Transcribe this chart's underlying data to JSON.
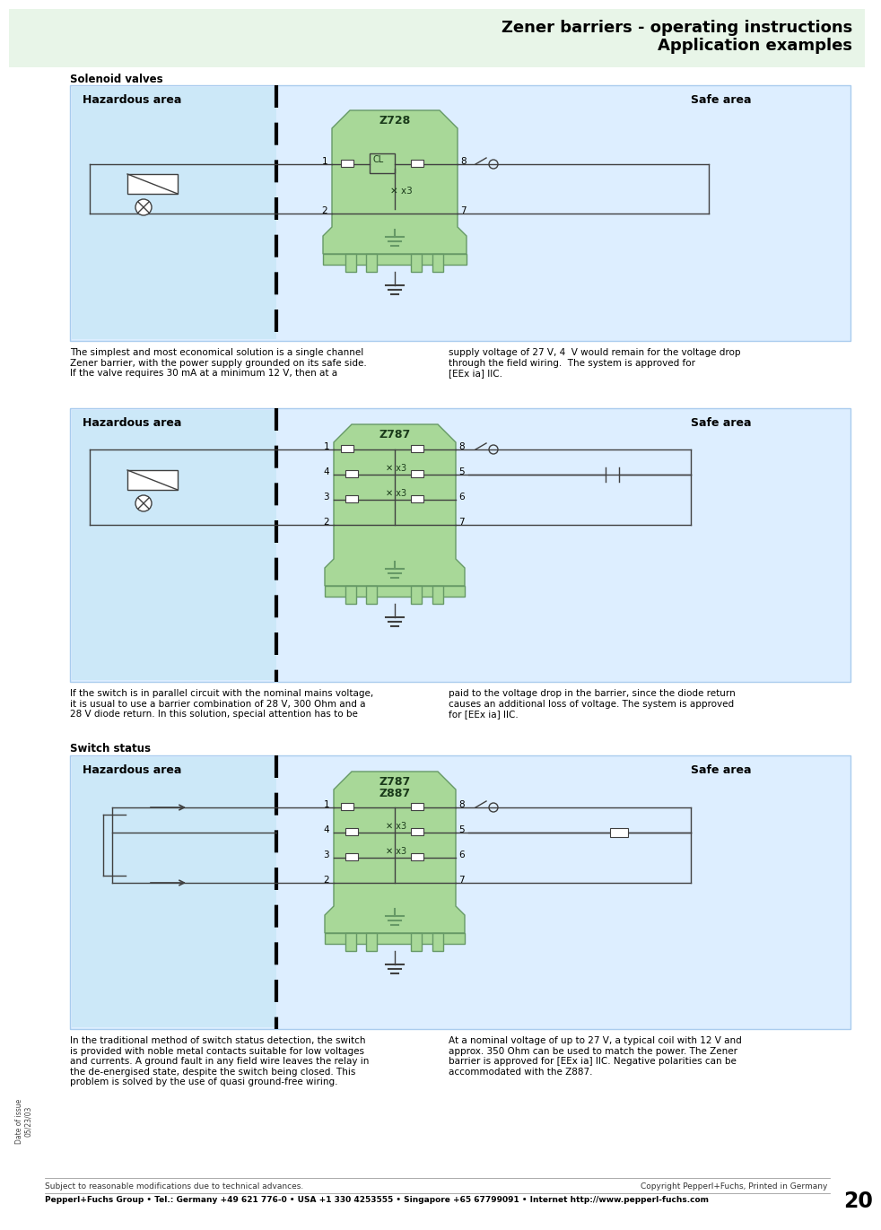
{
  "title_line1": "Zener barriers - operating instructions",
  "title_line2": "Application examples",
  "page_bg": "#ffffff",
  "header_bg": "#e8f5e8",
  "hazardous_bg": "#ddeeff",
  "hazardous_border": "#aaccee",
  "green_light": "#a8d898",
  "green_mid": "#88bb88",
  "border_color": "#669966",
  "line_color": "#404040",
  "section1_label": "Solenoid valves",
  "section3_label": "Switch status",
  "diag1_title": "Z728",
  "diag2_title": "Z787",
  "diag3_title_1": "Z787",
  "diag3_title_2": "Z887",
  "hazardous_label": "Hazardous area",
  "safe_label": "Safe area",
  "text1a": "The simplest and most economical solution is a single channel\nZener barrier, with the power supply grounded on its safe side.\nIf the valve requires 30 mA at a minimum 12 V, then at a",
  "text1b": "supply voltage of 27 V, 4  V would remain for the voltage drop\nthrough the field wiring.  The system is approved for\n[EEx ia] IIC.",
  "text2a": "If the switch is in parallel circuit with the nominal mains voltage,\nit is usual to use a barrier combination of 28 V, 300 Ohm and a\n28 V diode return. In this solution, special attention has to be",
  "text2b": "paid to the voltage drop in the barrier, since the diode return\ncauses an additional loss of voltage. The system is approved\nfor [EEx ia] IIC.",
  "text3a": "In the traditional method of switch status detection, the switch\nis provided with noble metal contacts suitable for low voltages\nand currents. A ground fault in any field wire leaves the relay in\nthe de-energised state, despite the switch being closed. This\nproblem is solved by the use of quasi ground-free wiring.",
  "text3b": "At a nominal voltage of up to 27 V, a typical coil with 12 V and\napprox. 350 Ohm can be used to match the power. The Zener\nbarrier is approved for [EEx ia] IIC. Negative polarities can be\naccommodated with the Z887.",
  "footer_left": "Subject to reasonable modifications due to technical advances.",
  "footer_right": "Copyright Pepperl+Fuchs, Printed in Germany",
  "footer_bottom": "Pepperl+Fuchs Group • Tel.: Germany +49 621 776-0 • USA +1 330 4253555 • Singapore +65 67799091 • Internet http://www.pepperl-fuchs.com",
  "page_number": "20",
  "date_of_issue": "Date of issue",
  "date_code": "05/23/03"
}
